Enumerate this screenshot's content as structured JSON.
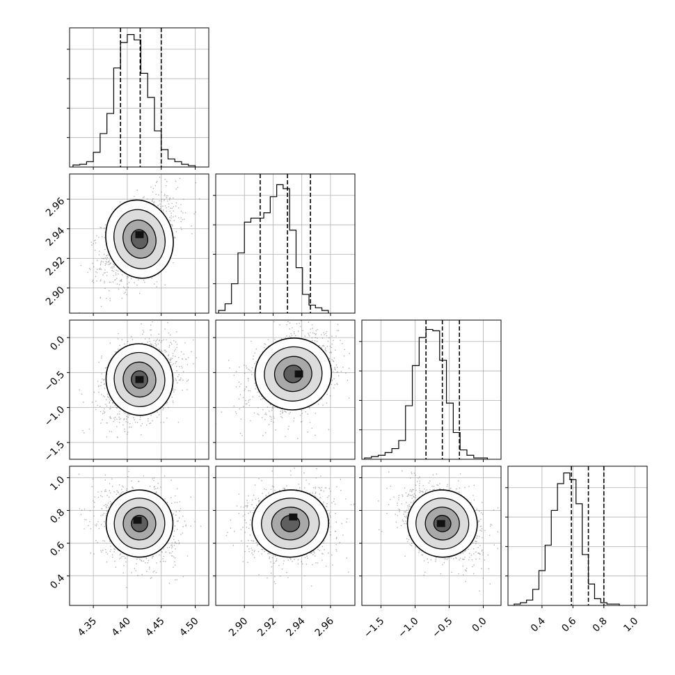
{
  "chart_data": {
    "type": "corner",
    "parameters": [
      {
        "xlim": [
          4.315,
          4.52
        ],
        "ticks": [
          4.35,
          4.4,
          4.45,
          4.5
        ],
        "tick_labels": [
          "4.35",
          "4.40",
          "4.45",
          "4.50"
        ],
        "quantiles": [
          4.39,
          4.419,
          4.45
        ],
        "hist_x_start": 4.32,
        "hist_step": 0.01,
        "hist_counts": [
          0.015,
          0.02,
          0.04,
          0.11,
          0.25,
          0.4,
          0.74,
          0.93,
          0.99,
          0.95,
          0.7,
          0.52,
          0.27,
          0.13,
          0.06,
          0.04,
          0.02,
          0.01
        ]
      },
      {
        "xlim": [
          2.88,
          2.977
        ],
        "ticks": [
          2.9,
          2.92,
          2.94,
          2.96
        ],
        "tick_labels": [
          "2.90",
          "2.92",
          "2.94",
          "2.96"
        ],
        "quantiles": [
          2.911,
          2.93,
          2.946
        ],
        "hist_x_start": 2.882,
        "hist_step": 0.0045,
        "hist_counts": [
          0.02,
          0.07,
          0.22,
          0.45,
          0.68,
          0.71,
          0.71,
          0.75,
          0.87,
          0.96,
          0.93,
          0.62,
          0.34,
          0.14,
          0.06,
          0.04,
          0.02
        ]
      },
      {
        "xlim": [
          -1.78,
          0.26
        ],
        "ticks": [
          -1.5,
          -1.0,
          -0.5,
          0.0
        ],
        "tick_labels": [
          "−1.5",
          "−1.0",
          "−0.5",
          "0.0"
        ],
        "quantiles": [
          -0.84,
          -0.6,
          -0.35
        ],
        "hist_x_start": -1.74,
        "hist_step": 0.1,
        "hist_counts": [
          0.01,
          0.02,
          0.03,
          0.05,
          0.08,
          0.14,
          0.4,
          0.7,
          0.91,
          0.97,
          0.96,
          0.74,
          0.42,
          0.2,
          0.07,
          0.03,
          0.01,
          0.01
        ]
      },
      {
        "xlim": [
          0.18,
          1.08
        ],
        "ticks": [
          0.4,
          0.6,
          0.8,
          1.0
        ],
        "tick_labels": [
          "0.4",
          "0.6",
          "0.8",
          "1.0"
        ],
        "quantiles": [
          0.59,
          0.7,
          0.8
        ],
        "hist_x_start": 0.22,
        "hist_step": 0.04,
        "hist_counts": [
          0.01,
          0.02,
          0.04,
          0.12,
          0.26,
          0.45,
          0.71,
          0.91,
          0.99,
          0.94,
          0.76,
          0.38,
          0.16,
          0.05,
          0.02,
          0.01,
          0.01
        ]
      }
    ],
    "y_axes": [
      null,
      {
        "ylim": [
          2.883,
          2.977
        ],
        "ticks": [
          2.9,
          2.92,
          2.94,
          2.96
        ],
        "tick_labels": [
          "2.90",
          "2.92",
          "2.94",
          "2.96"
        ]
      },
      {
        "ylim": [
          -1.74,
          0.25
        ],
        "ticks": [
          -1.5,
          -1.0,
          -0.5,
          0.0
        ],
        "tick_labels": [
          "−1.5",
          "−1.0",
          "−0.5",
          "0.0"
        ]
      },
      {
        "ylim": [
          0.22,
          1.07
        ],
        "ticks": [
          0.4,
          0.6,
          0.8,
          1.0
        ],
        "tick_labels": [
          "0.4",
          "0.6",
          "0.8",
          "1.0"
        ]
      }
    ],
    "pairs": [
      {
        "xi": 0,
        "yi": 1,
        "center": [
          4.418,
          2.933
        ],
        "sd": [
          0.024,
          0.013
        ],
        "rho": 0.45,
        "peak": [
          4.418,
          2.936
        ]
      },
      {
        "xi": 0,
        "yi": 2,
        "center": [
          4.418,
          -0.6
        ],
        "sd": [
          0.024,
          0.25
        ],
        "rho": 0.3,
        "peak": [
          4.418,
          -0.6
        ]
      },
      {
        "xi": 1,
        "yi": 2,
        "center": [
          2.934,
          -0.52
        ],
        "sd": [
          0.013,
          0.25
        ],
        "rho": 0.3,
        "peak": [
          2.938,
          -0.52
        ]
      },
      {
        "xi": 0,
        "yi": 3,
        "center": [
          4.418,
          0.72
        ],
        "sd": [
          0.024,
          0.1
        ],
        "rho": -0.15,
        "peak": [
          4.415,
          0.74
        ]
      },
      {
        "xi": 1,
        "yi": 3,
        "center": [
          2.932,
          0.72
        ],
        "sd": [
          0.013,
          0.1
        ],
        "rho": 0.1,
        "peak": [
          2.934,
          0.76
        ]
      },
      {
        "xi": 2,
        "yi": 3,
        "center": [
          -0.6,
          0.72
        ],
        "sd": [
          0.25,
          0.1
        ],
        "rho": -0.35,
        "peak": [
          -0.62,
          0.72
        ]
      }
    ],
    "grid": true,
    "quantile_line_style": "dashed",
    "title": "",
    "xlabel": "",
    "ylabel": ""
  }
}
